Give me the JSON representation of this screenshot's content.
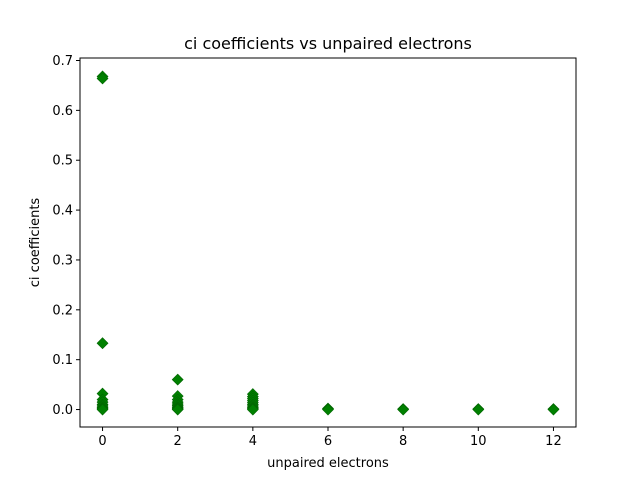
{
  "chart_data": {
    "type": "scatter",
    "title": "ci coefficients vs unpaired electrons",
    "xlabel": "unpaired electrons",
    "ylabel": "ci coefficients",
    "xlim": [
      -0.6,
      12.6
    ],
    "ylim": [
      -0.035,
      0.705
    ],
    "xticks": [
      0,
      2,
      4,
      6,
      8,
      10,
      12
    ],
    "yticks": [
      0.0,
      0.1,
      0.2,
      0.3,
      0.4,
      0.5,
      0.6,
      0.7
    ],
    "ytick_labels": [
      "0.0",
      "0.1",
      "0.2",
      "0.3",
      "0.4",
      "0.5",
      "0.6",
      "0.7"
    ],
    "grid": false,
    "marker": "diamond",
    "marker_color": "#008000",
    "points": [
      {
        "x": 0,
        "y": 0.668
      },
      {
        "x": 0,
        "y": 0.664
      },
      {
        "x": 0,
        "y": 0.133
      },
      {
        "x": 0,
        "y": 0.032
      },
      {
        "x": 0,
        "y": 0.02
      },
      {
        "x": 0,
        "y": 0.015
      },
      {
        "x": 0,
        "y": 0.01
      },
      {
        "x": 0,
        "y": 0.007
      },
      {
        "x": 0,
        "y": 0.004
      },
      {
        "x": 0,
        "y": 0.002
      },
      {
        "x": 0,
        "y": 0.0
      },
      {
        "x": 2,
        "y": 0.06
      },
      {
        "x": 2,
        "y": 0.027
      },
      {
        "x": 2,
        "y": 0.02
      },
      {
        "x": 2,
        "y": 0.015
      },
      {
        "x": 2,
        "y": 0.011
      },
      {
        "x": 2,
        "y": 0.008
      },
      {
        "x": 2,
        "y": 0.005
      },
      {
        "x": 2,
        "y": 0.003
      },
      {
        "x": 2,
        "y": 0.001
      },
      {
        "x": 2,
        "y": 0.0
      },
      {
        "x": 4,
        "y": 0.031
      },
      {
        "x": 4,
        "y": 0.026
      },
      {
        "x": 4,
        "y": 0.022
      },
      {
        "x": 4,
        "y": 0.018
      },
      {
        "x": 4,
        "y": 0.014
      },
      {
        "x": 4,
        "y": 0.01
      },
      {
        "x": 4,
        "y": 0.007
      },
      {
        "x": 4,
        "y": 0.004
      },
      {
        "x": 4,
        "y": 0.002
      },
      {
        "x": 4,
        "y": 0.0
      },
      {
        "x": 6,
        "y": 0.002
      },
      {
        "x": 6,
        "y": 0.001
      },
      {
        "x": 6,
        "y": 0.0
      },
      {
        "x": 8,
        "y": 0.001
      },
      {
        "x": 8,
        "y": 0.0
      },
      {
        "x": 10,
        "y": 0.001
      },
      {
        "x": 10,
        "y": 0.0
      },
      {
        "x": 12,
        "y": 0.001
      },
      {
        "x": 12,
        "y": 0.0
      }
    ]
  }
}
